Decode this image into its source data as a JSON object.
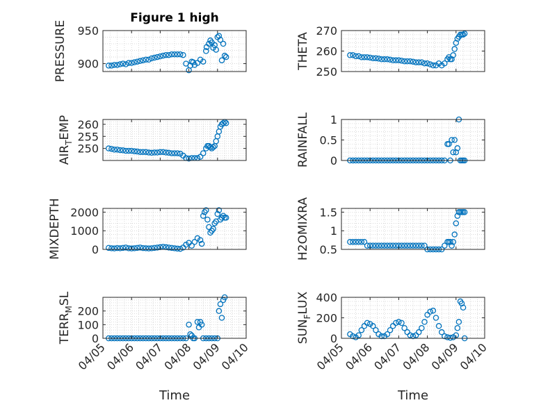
{
  "title": "Figure 1 high",
  "xlabel": "Time",
  "x_ticks": [
    "04/05",
    "04/06",
    "04/07",
    "04/08",
    "04/09",
    "04/10"
  ],
  "marker_color": "#0072bd",
  "chart_data": [
    {
      "type": "scatter",
      "id": "pressure",
      "ylabel": "PRESSURE",
      "ylabel_sub": "",
      "ylim": [
        888,
        950
      ],
      "yticks": [
        900,
        950
      ],
      "x_days": [
        0.2,
        0.3,
        0.4,
        0.5,
        0.6,
        0.7,
        0.8,
        0.9,
        1.0,
        1.1,
        1.2,
        1.3,
        1.4,
        1.5,
        1.6,
        1.7,
        1.8,
        1.9,
        2.0,
        2.1,
        2.2,
        2.3,
        2.4,
        2.5,
        2.6,
        2.7,
        2.8,
        2.9,
        3.0,
        3.05,
        3.1,
        3.15,
        3.2,
        3.3,
        3.4,
        3.5,
        3.6,
        3.62,
        3.7,
        3.75,
        3.8,
        3.85,
        3.9,
        3.95,
        4.0,
        4.05,
        4.1,
        4.15,
        4.2,
        4.25,
        4.3
      ],
      "y": [
        897,
        897,
        898,
        898,
        899,
        900,
        899,
        901,
        901,
        902,
        903,
        904,
        905,
        906,
        906,
        908,
        909,
        910,
        911,
        912,
        913,
        913,
        914,
        914,
        914,
        914,
        913,
        900,
        890,
        897,
        903,
        902,
        898,
        901,
        906,
        903,
        919,
        925,
        930,
        935,
        932,
        924,
        928,
        921,
        940,
        942,
        936,
        905,
        930,
        912,
        910
      ]
    },
    {
      "type": "scatter",
      "id": "theta",
      "ylabel": "THETA",
      "ylabel_sub": "",
      "ylim": [
        250,
        270
      ],
      "yticks": [
        250,
        260,
        270
      ],
      "x_days": [
        0.3,
        0.4,
        0.5,
        0.6,
        0.7,
        0.8,
        0.9,
        1.0,
        1.1,
        1.2,
        1.3,
        1.4,
        1.5,
        1.6,
        1.7,
        1.8,
        1.9,
        2.0,
        2.1,
        2.2,
        2.3,
        2.4,
        2.5,
        2.6,
        2.7,
        2.8,
        2.9,
        3.0,
        3.1,
        3.2,
        3.3,
        3.4,
        3.5,
        3.6,
        3.7,
        3.75,
        3.8,
        3.85,
        3.9,
        3.95,
        4.0,
        4.05,
        4.1,
        4.15,
        4.2,
        4.25,
        4.3
      ],
      "y": [
        258,
        258,
        257.5,
        257.5,
        257,
        257,
        257,
        256.8,
        256.5,
        256.5,
        256.3,
        256,
        256,
        256,
        255.8,
        255.5,
        255.5,
        255.5,
        255.3,
        255,
        255,
        255,
        254.8,
        254.5,
        254.5,
        254.5,
        254,
        254,
        253.5,
        253,
        253,
        254,
        253,
        254,
        256,
        257,
        256,
        256,
        258,
        261,
        264,
        266,
        267,
        268,
        268,
        268,
        268.5
      ]
    },
    {
      "type": "scatter",
      "id": "air_temp",
      "ylabel": "AIR",
      "ylabel_sub": "T",
      "ylabel_tail": "EMP",
      "ylim": [
        245,
        262
      ],
      "yticks": [
        250,
        255,
        260
      ],
      "x_days": [
        0.2,
        0.3,
        0.4,
        0.5,
        0.6,
        0.7,
        0.8,
        0.9,
        1.0,
        1.1,
        1.2,
        1.3,
        1.4,
        1.5,
        1.6,
        1.7,
        1.8,
        1.9,
        2.0,
        2.1,
        2.2,
        2.3,
        2.4,
        2.5,
        2.6,
        2.7,
        2.8,
        2.9,
        3.0,
        3.1,
        3.2,
        3.3,
        3.4,
        3.5,
        3.6,
        3.65,
        3.7,
        3.75,
        3.8,
        3.85,
        3.9,
        3.95,
        4.0,
        4.05,
        4.1,
        4.15,
        4.2,
        4.25,
        4.3
      ],
      "y": [
        250,
        249.8,
        249.5,
        249.5,
        249.3,
        249.2,
        249,
        249,
        249,
        248.8,
        248.7,
        248.5,
        248.5,
        248.5,
        248.3,
        248.2,
        248.3,
        248.3,
        248.5,
        248.5,
        248.3,
        248.2,
        248,
        248,
        248,
        247.8,
        247,
        246,
        245.8,
        246,
        246,
        246,
        246.5,
        248,
        250,
        251,
        251,
        250.5,
        250,
        250.5,
        251,
        253,
        255,
        257,
        259,
        260,
        260.5,
        261,
        260.5
      ]
    },
    {
      "type": "scatter",
      "id": "rainfall",
      "ylabel": "RAINFALL",
      "ylabel_sub": "",
      "ylim": [
        0,
        1
      ],
      "yticks": [
        0,
        0.5,
        1
      ],
      "x_days": [
        0.3,
        0.4,
        0.5,
        0.6,
        0.7,
        0.8,
        0.9,
        1.0,
        1.1,
        1.2,
        1.3,
        1.4,
        1.5,
        1.6,
        1.7,
        1.8,
        1.9,
        2.0,
        2.1,
        2.2,
        2.3,
        2.4,
        2.5,
        2.6,
        2.7,
        2.8,
        2.9,
        3.0,
        3.1,
        3.2,
        3.3,
        3.4,
        3.5,
        3.6,
        3.7,
        3.75,
        3.8,
        3.85,
        3.9,
        3.95,
        4.0,
        4.05,
        4.1,
        4.15,
        4.2,
        4.25,
        4.3
      ],
      "y": [
        0,
        0,
        0,
        0,
        0,
        0,
        0,
        0,
        0,
        0,
        0,
        0,
        0,
        0,
        0,
        0,
        0,
        0,
        0,
        0,
        0,
        0,
        0,
        0,
        0,
        0,
        0,
        0,
        0,
        0,
        0,
        0,
        0,
        0,
        0.4,
        0.4,
        0,
        0.5,
        0.2,
        0.5,
        0.2,
        0.3,
        1,
        0,
        0,
        0,
        0
      ]
    },
    {
      "type": "scatter",
      "id": "mixdepth",
      "ylabel": "MIXDEPTH",
      "ylabel_sub": "",
      "ylim": [
        0,
        2200
      ],
      "yticks": [
        0,
        1000,
        2000
      ],
      "x_days": [
        0.2,
        0.3,
        0.4,
        0.5,
        0.6,
        0.7,
        0.8,
        0.9,
        1.0,
        1.1,
        1.2,
        1.3,
        1.4,
        1.5,
        1.6,
        1.7,
        1.8,
        1.9,
        2.0,
        2.1,
        2.2,
        2.3,
        2.4,
        2.5,
        2.6,
        2.7,
        2.8,
        2.9,
        3.0,
        3.1,
        3.2,
        3.3,
        3.4,
        3.45,
        3.5,
        3.55,
        3.6,
        3.65,
        3.7,
        3.75,
        3.8,
        3.85,
        3.9,
        3.95,
        4.0,
        4.05,
        4.1,
        4.15,
        4.2,
        4.25,
        4.3
      ],
      "y": [
        80,
        60,
        50,
        70,
        60,
        80,
        100,
        60,
        50,
        60,
        80,
        100,
        70,
        60,
        50,
        60,
        80,
        100,
        120,
        140,
        120,
        100,
        80,
        60,
        40,
        30,
        100,
        250,
        350,
        200,
        400,
        600,
        500,
        300,
        1800,
        2000,
        2100,
        1600,
        1200,
        900,
        1000,
        1100,
        1400,
        1500,
        1900,
        2100,
        1600,
        1700,
        1800,
        1700,
        1700
      ]
    },
    {
      "type": "scatter",
      "id": "h2omixra",
      "ylabel": "H2OMIXRA",
      "ylabel_sub": "",
      "ylim": [
        0.5,
        1.6
      ],
      "yticks": [
        0.5,
        1,
        1.5
      ],
      "x_days": [
        0.3,
        0.4,
        0.5,
        0.6,
        0.7,
        0.8,
        0.9,
        1.0,
        1.1,
        1.2,
        1.3,
        1.4,
        1.5,
        1.6,
        1.7,
        1.8,
        1.9,
        2.0,
        2.1,
        2.2,
        2.3,
        2.4,
        2.5,
        2.6,
        2.7,
        2.8,
        2.9,
        3.0,
        3.1,
        3.2,
        3.3,
        3.4,
        3.5,
        3.6,
        3.7,
        3.75,
        3.8,
        3.85,
        3.9,
        3.95,
        4.0,
        4.05,
        4.1,
        4.15,
        4.2,
        4.25,
        4.3
      ],
      "y": [
        0.7,
        0.7,
        0.7,
        0.7,
        0.7,
        0.7,
        0.6,
        0.6,
        0.6,
        0.6,
        0.6,
        0.6,
        0.6,
        0.6,
        0.6,
        0.6,
        0.6,
        0.6,
        0.6,
        0.6,
        0.6,
        0.6,
        0.6,
        0.6,
        0.6,
        0.6,
        0.6,
        0.5,
        0.5,
        0.5,
        0.5,
        0.5,
        0.5,
        0.6,
        0.7,
        0.7,
        0.7,
        0.6,
        0.7,
        0.9,
        1.2,
        1.4,
        1.5,
        1.5,
        1.5,
        1.5,
        1.5
      ]
    },
    {
      "type": "scatter",
      "id": "terr_msl",
      "ylabel": "TERR",
      "ylabel_sub": "M",
      "ylabel_tail": "SL",
      "ylim": [
        0,
        300
      ],
      "yticks": [
        0,
        100,
        200
      ],
      "x_days": [
        0.2,
        0.3,
        0.4,
        0.5,
        0.6,
        0.7,
        0.8,
        0.9,
        1.0,
        1.1,
        1.2,
        1.3,
        1.4,
        1.5,
        1.6,
        1.7,
        1.8,
        1.9,
        2.0,
        2.1,
        2.2,
        2.3,
        2.4,
        2.5,
        2.6,
        2.7,
        2.8,
        2.9,
        3.0,
        3.05,
        3.1,
        3.15,
        3.2,
        3.3,
        3.35,
        3.4,
        3.45,
        3.5,
        3.6,
        3.7,
        3.8,
        3.9,
        4.0,
        4.05,
        4.1,
        4.15,
        4.2,
        4.25
      ],
      "y": [
        0,
        0,
        0,
        0,
        0,
        0,
        0,
        0,
        0,
        0,
        0,
        0,
        0,
        0,
        0,
        0,
        0,
        0,
        0,
        0,
        0,
        0,
        0,
        0,
        0,
        0,
        0,
        0,
        100,
        30,
        20,
        0,
        0,
        120,
        80,
        120,
        100,
        0,
        0,
        0,
        0,
        0,
        0,
        200,
        250,
        150,
        280,
        300
      ]
    },
    {
      "type": "scatter",
      "id": "sun_flux",
      "ylabel": "SUN",
      "ylabel_sub": "F",
      "ylabel_tail": "LUX",
      "ylim": [
        0,
        400
      ],
      "yticks": [
        0,
        200,
        400
      ],
      "x_days": [
        0.3,
        0.4,
        0.5,
        0.6,
        0.7,
        0.8,
        0.9,
        1.0,
        1.1,
        1.2,
        1.3,
        1.4,
        1.5,
        1.6,
        1.7,
        1.8,
        1.9,
        2.0,
        2.1,
        2.2,
        2.3,
        2.4,
        2.5,
        2.6,
        2.7,
        2.8,
        2.9,
        3.0,
        3.1,
        3.2,
        3.3,
        3.4,
        3.5,
        3.6,
        3.7,
        3.8,
        3.9,
        4.0,
        4.05,
        4.1,
        4.15,
        4.2,
        4.25,
        4.3
      ],
      "y": [
        40,
        20,
        10,
        30,
        80,
        120,
        150,
        140,
        120,
        80,
        40,
        20,
        20,
        40,
        80,
        120,
        150,
        160,
        150,
        100,
        60,
        30,
        20,
        30,
        60,
        100,
        160,
        230,
        260,
        270,
        200,
        120,
        60,
        20,
        10,
        5,
        10,
        30,
        100,
        160,
        360,
        340,
        300,
        0
      ]
    }
  ]
}
